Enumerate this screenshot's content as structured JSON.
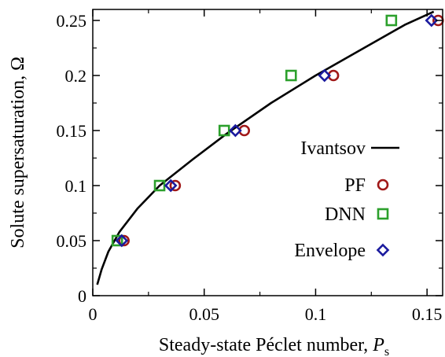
{
  "chart_data": {
    "type": "scatter",
    "xlabel": "Steady-state Péclet number, ",
    "xlabel_symbol": "P",
    "xlabel_sub": "s",
    "ylabel": "Solute supersaturation, Ω",
    "xlim": [
      0,
      0.157
    ],
    "ylim": [
      0,
      0.26
    ],
    "x_ticks": [
      0,
      0.05,
      0.1,
      0.15
    ],
    "x_tick_labels": [
      "0",
      "0.05",
      "0.1",
      "0.15"
    ],
    "y_ticks": [
      0,
      0.05,
      0.1,
      0.15,
      0.2,
      0.25
    ],
    "y_tick_labels": [
      "0",
      "0.05",
      "0.1",
      "0.15",
      "0.2",
      "0.25"
    ],
    "grid": false,
    "legend_position": "bottom-right",
    "series": [
      {
        "name": "Ivantsov",
        "kind": "line",
        "color": "#000000",
        "x": [
          0.002,
          0.004,
          0.007,
          0.012,
          0.02,
          0.03,
          0.045,
          0.06,
          0.08,
          0.1,
          0.12,
          0.14,
          0.153
        ],
        "y": [
          0.01,
          0.024,
          0.04,
          0.058,
          0.079,
          0.1,
          0.124,
          0.147,
          0.175,
          0.2,
          0.223,
          0.246,
          0.258
        ]
      },
      {
        "name": "PF",
        "kind": "marker",
        "marker": "circle",
        "color": "#a01818",
        "x": [
          0.014,
          0.037,
          0.068,
          0.108,
          0.155
        ],
        "y": [
          0.05,
          0.1,
          0.15,
          0.2,
          0.25
        ]
      },
      {
        "name": "DNN",
        "kind": "marker",
        "marker": "square",
        "color": "#2ca02c",
        "x": [
          0.011,
          0.03,
          0.059,
          0.089,
          0.134
        ],
        "y": [
          0.05,
          0.1,
          0.15,
          0.2,
          0.25
        ]
      },
      {
        "name": "Envelope",
        "kind": "marker",
        "marker": "diamond",
        "color": "#1a1a9e",
        "x": [
          0.013,
          0.035,
          0.064,
          0.104,
          0.152
        ],
        "y": [
          0.05,
          0.1,
          0.15,
          0.2,
          0.25
        ]
      }
    ]
  }
}
